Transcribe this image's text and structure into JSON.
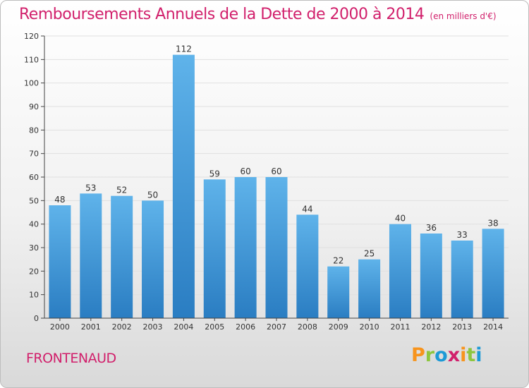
{
  "header": {
    "title": "Remboursements Annuels de la Dette de 2000 à 2014",
    "subtitle": "(en milliers d'€)"
  },
  "footer": {
    "commune": "FRONTENAUD",
    "logo": {
      "letters": [
        "P",
        "r",
        "o",
        "x",
        "i",
        "t",
        "i"
      ],
      "colors": [
        "#f7941d",
        "#8dc63f",
        "#1d9ad6",
        "#d11f6b",
        "#f7941d",
        "#8dc63f",
        "#1d9ad6"
      ]
    }
  },
  "colors": {
    "title": "#d11f6b",
    "bar_top": "#5fb3ea",
    "bar_bottom": "#2a7dc2",
    "grid": "#e0e0e0",
    "axis": "#444444"
  },
  "chart_data": {
    "type": "bar",
    "categories": [
      "2000",
      "2001",
      "2002",
      "2003",
      "2004",
      "2005",
      "2006",
      "2007",
      "2008",
      "2009",
      "2010",
      "2011",
      "2012",
      "2013",
      "2014"
    ],
    "values": [
      48,
      53,
      52,
      50,
      112,
      59,
      60,
      60,
      44,
      22,
      25,
      40,
      36,
      33,
      38
    ],
    "value_labels": [
      "48",
      "53",
      "52",
      "50",
      "112",
      "59",
      "60",
      "60",
      "44",
      "22",
      "25",
      "40",
      "36",
      "33",
      "38"
    ],
    "ylim": [
      0,
      120
    ],
    "yticks": [
      0,
      10,
      20,
      30,
      40,
      50,
      60,
      70,
      80,
      90,
      100,
      110,
      120
    ],
    "grid": true,
    "title": "Remboursements Annuels de la Dette de 2000 à 2014",
    "subtitle": "(en milliers d'€)",
    "xlabel": "",
    "ylabel": ""
  }
}
